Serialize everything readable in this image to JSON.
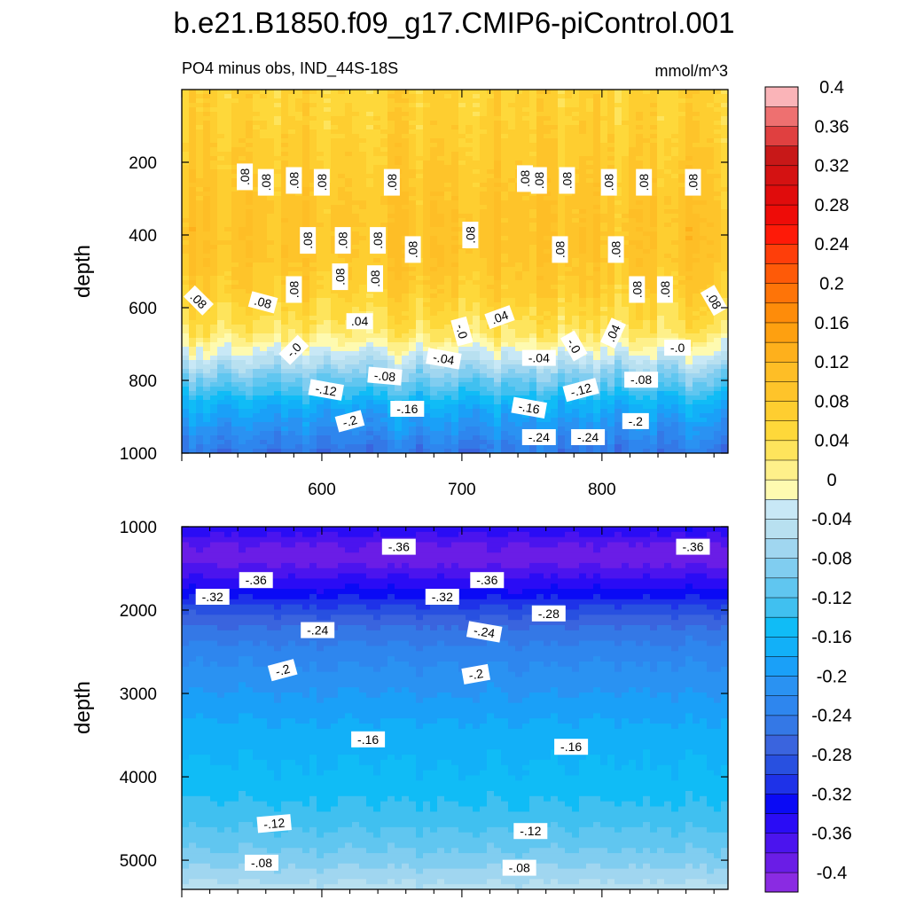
{
  "title": "b.e21.B1850.f09_g17.CMIP6-piControl.001",
  "subtitle_left": "PO4 minus obs, IND_44S-18S",
  "subtitle_right": "mmol/m^3",
  "chart_data": {
    "type": "heatmap",
    "plot_kind": "filled contour section (depth vs latitude index)",
    "variable": "PO4 minus obs",
    "region": "IND_44S-18S",
    "units": "mmol/m^3",
    "x_axis": {
      "range": [
        500,
        890
      ],
      "tick_values": [
        600,
        700,
        800
      ],
      "tick_labels": [
        "600",
        "700",
        "800"
      ]
    },
    "panels": [
      {
        "name": "upper",
        "ylabel": "depth",
        "y_range": [
          0,
          1000
        ],
        "y_reversed": true,
        "y_tick_values": [
          200,
          400,
          600,
          800,
          1000
        ],
        "y_tick_labels": [
          "200",
          "400",
          "600",
          "800",
          "1000"
        ],
        "depth_profile": [
          [
            0,
            0.06
          ],
          [
            50,
            0.06
          ],
          [
            150,
            0.07
          ],
          [
            250,
            0.08
          ],
          [
            350,
            0.09
          ],
          [
            450,
            0.09
          ],
          [
            550,
            0.07
          ],
          [
            620,
            0.045
          ],
          [
            660,
            0.03
          ],
          [
            700,
            0.0
          ],
          [
            740,
            -0.04
          ],
          [
            780,
            -0.08
          ],
          [
            820,
            -0.12
          ],
          [
            860,
            -0.16
          ],
          [
            900,
            -0.19
          ],
          [
            950,
            -0.22
          ],
          [
            1000,
            -0.25
          ]
        ],
        "contour_labels": [
          {
            "text": ".08",
            "x": 545,
            "y": 240,
            "angle": 90
          },
          {
            "text": ".08",
            "x": 560,
            "y": 255,
            "angle": 90
          },
          {
            "text": ".08",
            "x": 580,
            "y": 250,
            "angle": 90
          },
          {
            "text": ".08",
            "x": 600,
            "y": 255,
            "angle": 90
          },
          {
            "text": ".08",
            "x": 650,
            "y": 255,
            "angle": 90
          },
          {
            "text": ".08",
            "x": 745,
            "y": 245,
            "angle": 90
          },
          {
            "text": ".08",
            "x": 755,
            "y": 250,
            "angle": 90
          },
          {
            "text": ".08",
            "x": 775,
            "y": 250,
            "angle": 90
          },
          {
            "text": ".08",
            "x": 805,
            "y": 255,
            "angle": 90
          },
          {
            "text": ".08",
            "x": 830,
            "y": 255,
            "angle": 90
          },
          {
            "text": ".08",
            "x": 865,
            "y": 255,
            "angle": 90
          },
          {
            "text": ".08",
            "x": 590,
            "y": 415,
            "angle": 90
          },
          {
            "text": ".08",
            "x": 615,
            "y": 415,
            "angle": 90
          },
          {
            "text": ".08",
            "x": 640,
            "y": 415,
            "angle": 90
          },
          {
            "text": ".08",
            "x": 706,
            "y": 400,
            "angle": 90
          },
          {
            "text": ".08",
            "x": 770,
            "y": 440,
            "angle": 90
          },
          {
            "text": ".08",
            "x": 810,
            "y": 440,
            "angle": 90
          },
          {
            "text": ".08",
            "x": 665,
            "y": 440,
            "angle": 90
          },
          {
            "text": ".08",
            "x": 613,
            "y": 515,
            "angle": 90
          },
          {
            "text": ".08",
            "x": 638,
            "y": 520,
            "angle": 90
          },
          {
            "text": ".08",
            "x": 580,
            "y": 550,
            "angle": 90
          },
          {
            "text": ".08",
            "x": 512,
            "y": 580,
            "angle": -45
          },
          {
            "text": ".08",
            "x": 558,
            "y": 585,
            "angle": -15
          },
          {
            "text": ".08",
            "x": 825,
            "y": 550,
            "angle": 90
          },
          {
            "text": ".08",
            "x": 845,
            "y": 550,
            "angle": 90
          },
          {
            "text": ".08",
            "x": 880,
            "y": 580,
            "angle": -60
          },
          {
            "text": ".04",
            "x": 627,
            "y": 637,
            "angle": 0
          },
          {
            "text": ".04",
            "x": 727,
            "y": 626,
            "angle": 20
          },
          {
            "text": ".04",
            "x": 808,
            "y": 670,
            "angle": 65
          },
          {
            "text": "-.0",
            "x": 700,
            "y": 665,
            "angle": -75
          },
          {
            "text": "-.0",
            "x": 580,
            "y": 716,
            "angle": 45
          },
          {
            "text": "-.0",
            "x": 780,
            "y": 705,
            "angle": -60
          },
          {
            "text": "-.0",
            "x": 854,
            "y": 710,
            "angle": 0
          },
          {
            "text": "-.04",
            "x": 687,
            "y": 740,
            "angle": -10
          },
          {
            "text": "-.04",
            "x": 755,
            "y": 738,
            "angle": 0
          },
          {
            "text": "-.08",
            "x": 645,
            "y": 788,
            "angle": -5
          },
          {
            "text": "-.08",
            "x": 828,
            "y": 798,
            "angle": 0
          },
          {
            "text": "-.12",
            "x": 603,
            "y": 826,
            "angle": -10
          },
          {
            "text": "-.12",
            "x": 785,
            "y": 826,
            "angle": 15
          },
          {
            "text": "-.16",
            "x": 661,
            "y": 878,
            "angle": 0
          },
          {
            "text": "-.16",
            "x": 748,
            "y": 875,
            "angle": -10
          },
          {
            "text": "-.2",
            "x": 620,
            "y": 912,
            "angle": 15
          },
          {
            "text": "-.2",
            "x": 824,
            "y": 912,
            "angle": 0
          },
          {
            "text": "-.24",
            "x": 755,
            "y": 956,
            "angle": 0
          },
          {
            "text": "-.24",
            "x": 790,
            "y": 956,
            "angle": 0
          }
        ]
      },
      {
        "name": "lower",
        "ylabel": "depth",
        "y_range": [
          1000,
          5350
        ],
        "y_reversed": true,
        "y_tick_values": [
          1000,
          2000,
          3000,
          4000,
          5000
        ],
        "y_tick_labels": [
          "1000",
          "2000",
          "3000",
          "4000",
          "5000"
        ],
        "depth_profile": [
          [
            1000,
            -0.34
          ],
          [
            1200,
            -0.38
          ],
          [
            1400,
            -0.39
          ],
          [
            1600,
            -0.36
          ],
          [
            1800,
            -0.33
          ],
          [
            2000,
            -0.29
          ],
          [
            2200,
            -0.26
          ],
          [
            2500,
            -0.23
          ],
          [
            3000,
            -0.2
          ],
          [
            3500,
            -0.17
          ],
          [
            4000,
            -0.155
          ],
          [
            4500,
            -0.13
          ],
          [
            5000,
            -0.09
          ],
          [
            5350,
            -0.05
          ]
        ],
        "contour_labels": [
          {
            "text": "-.36",
            "x": 655,
            "y": 1240,
            "angle": 0
          },
          {
            "text": "-.36",
            "x": 865,
            "y": 1240,
            "angle": 0
          },
          {
            "text": "-.36",
            "x": 553,
            "y": 1640,
            "angle": 0
          },
          {
            "text": "-.36",
            "x": 718,
            "y": 1640,
            "angle": 0
          },
          {
            "text": "-.32",
            "x": 522,
            "y": 1840,
            "angle": 0
          },
          {
            "text": "-.32",
            "x": 686,
            "y": 1840,
            "angle": 0
          },
          {
            "text": "-.28",
            "x": 762,
            "y": 2040,
            "angle": 0
          },
          {
            "text": "-.24",
            "x": 597,
            "y": 2240,
            "angle": 0
          },
          {
            "text": "-.24",
            "x": 716,
            "y": 2260,
            "angle": -10
          },
          {
            "text": "-.2",
            "x": 572,
            "y": 2720,
            "angle": 15
          },
          {
            "text": "-.2",
            "x": 710,
            "y": 2770,
            "angle": 10
          },
          {
            "text": "-.16",
            "x": 633,
            "y": 3550,
            "angle": 0
          },
          {
            "text": "-.16",
            "x": 778,
            "y": 3640,
            "angle": 0
          },
          {
            "text": "-.12",
            "x": 566,
            "y": 4560,
            "angle": 5
          },
          {
            "text": "-.12",
            "x": 749,
            "y": 4650,
            "angle": 0
          },
          {
            "text": "-.08",
            "x": 557,
            "y": 5030,
            "angle": 0
          },
          {
            "text": "-.08",
            "x": 741,
            "y": 5090,
            "angle": 0
          }
        ]
      }
    ],
    "colorbar": {
      "levels": [
        -0.42,
        -0.4,
        -0.38,
        -0.36,
        -0.34,
        -0.32,
        -0.3,
        -0.28,
        -0.26,
        -0.24,
        -0.22,
        -0.2,
        -0.18,
        -0.16,
        -0.14,
        -0.12,
        -0.1,
        -0.08,
        -0.06,
        -0.04,
        -0.02,
        0.0,
        0.02,
        0.04,
        0.06,
        0.08,
        0.1,
        0.12,
        0.14,
        0.16,
        0.18,
        0.2,
        0.22,
        0.24,
        0.26,
        0.28,
        0.3,
        0.32,
        0.34,
        0.36,
        0.38,
        0.4,
        0.42
      ],
      "colors": [
        "#8a2be2",
        "#6a1de6",
        "#4b14ee",
        "#2a0cf5",
        "#0a0af5",
        "#1e32e8",
        "#2850e0",
        "#3a64de",
        "#3478e6",
        "#2e86ee",
        "#2a92f2",
        "#1aa0f8",
        "#12b0f8",
        "#10bcf6",
        "#40c0f0",
        "#60c6f0",
        "#80cdf0",
        "#a0d6f0",
        "#b8e0f0",
        "#c8e8f6",
        "#fefab0",
        "#fef08a",
        "#fee45c",
        "#fed83a",
        "#fece30",
        "#fec42a",
        "#febe26",
        "#feb01c",
        "#fea010",
        "#fe8c0a",
        "#fe7408",
        "#fe5a08",
        "#fe3e0a",
        "#fe1a08",
        "#ee0c08",
        "#e00c0c",
        "#d41212",
        "#c81818",
        "#e04040",
        "#ee7070",
        "#fab4b8"
      ],
      "tick_labels": [
        "-0.4",
        "-0.36",
        "-0.32",
        "-0.28",
        "-0.24",
        "-0.2",
        "-0.16",
        "-0.12",
        "-0.08",
        "-0.04",
        "0",
        "0.04",
        "0.08",
        "0.12",
        "0.16",
        "0.2",
        "0.24",
        "0.28",
        "0.32",
        "0.36",
        "0.4"
      ]
    }
  }
}
